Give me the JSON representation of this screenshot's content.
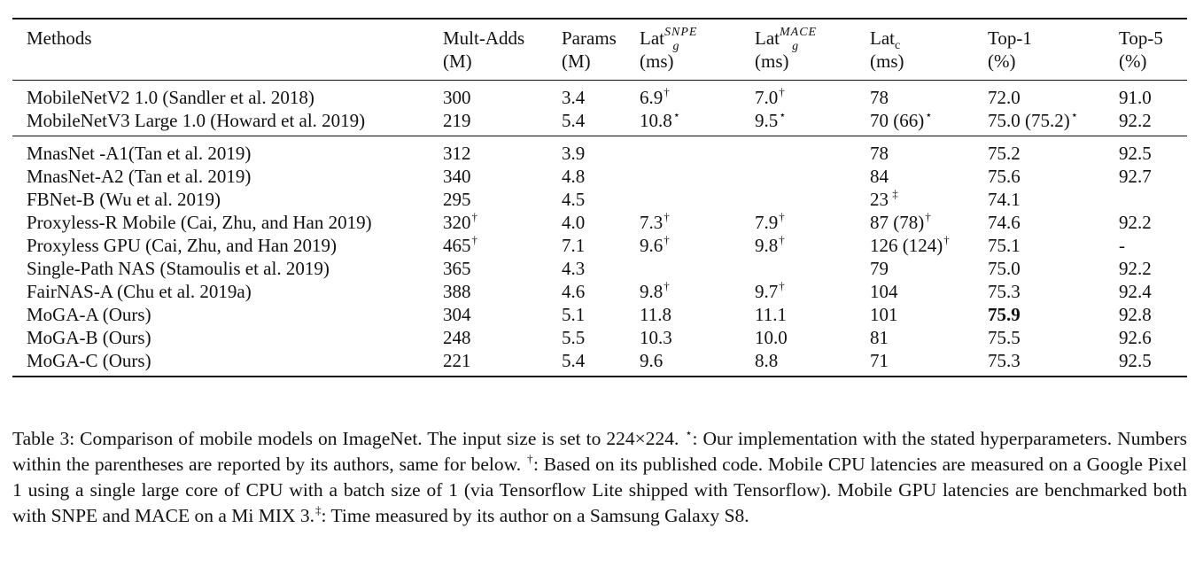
{
  "table": {
    "headers": {
      "methods": "Methods",
      "mult_adds": {
        "line1": "Mult-Adds",
        "line2": "(M)"
      },
      "params": {
        "line1": "Params",
        "line2": "(M)"
      },
      "lat_snpe": {
        "base": "Lat",
        "sub": "g",
        "sup": "SNPE",
        "line2": "(ms)"
      },
      "lat_mace": {
        "base": "Lat",
        "sub": "g",
        "sup": "MACE",
        "line2": "(ms)"
      },
      "lat_c": {
        "base": "Lat",
        "sub": "c",
        "line2": "(ms)"
      },
      "top1": {
        "line1": "Top-1",
        "line2": "(%)"
      },
      "top5": {
        "line1": "Top-5",
        "line2": "(%)"
      }
    },
    "groups": [
      {
        "rows": [
          {
            "method": "MobileNetV2 1.0 (Sandler et al. 2018)",
            "mult_adds": "300",
            "mult_adds_mark": "",
            "params": "3.4",
            "lat_snpe": "6.9",
            "lat_snpe_mark": "†",
            "lat_mace": "7.0",
            "lat_mace_mark": "†",
            "lat_c": "78",
            "lat_c_mark": "",
            "top1": "72.0",
            "top1_mark": "",
            "top1_bold": false,
            "top5": "91.0"
          },
          {
            "method": "MobileNetV3 Large 1.0 (Howard et al. 2019)",
            "mult_adds": "219",
            "mult_adds_mark": "",
            "params": "5.4",
            "lat_snpe": "10.8",
            "lat_snpe_mark": "⋆",
            "lat_mace": "9.5",
            "lat_mace_mark": "⋆",
            "lat_c": "70 (66)",
            "lat_c_mark": "⋆",
            "top1": "75.0 (75.2)",
            "top1_mark": "⋆",
            "top1_bold": false,
            "top5": "92.2"
          }
        ]
      },
      {
        "rows": [
          {
            "method": "MnasNet -A1(Tan et al. 2019)",
            "mult_adds": "312",
            "mult_adds_mark": "",
            "params": "3.9",
            "lat_snpe": "",
            "lat_snpe_mark": "",
            "lat_mace": "",
            "lat_mace_mark": "",
            "lat_c": "78",
            "lat_c_mark": "",
            "top1": "75.2",
            "top1_mark": "",
            "top1_bold": false,
            "top5": "92.5"
          },
          {
            "method": "MnasNet-A2 (Tan et al. 2019)",
            "mult_adds": "340",
            "mult_adds_mark": "",
            "params": "4.8",
            "lat_snpe": "",
            "lat_snpe_mark": "",
            "lat_mace": "",
            "lat_mace_mark": "",
            "lat_c": "84",
            "lat_c_mark": "",
            "top1": "75.6",
            "top1_mark": "",
            "top1_bold": false,
            "top5": "92.7"
          },
          {
            "method": "FBNet-B (Wu et al. 2019)",
            "mult_adds": "295",
            "mult_adds_mark": "",
            "params": "4.5",
            "lat_snpe": "",
            "lat_snpe_mark": "",
            "lat_mace": "",
            "lat_mace_mark": "",
            "lat_c": "23",
            "lat_c_mark": " ‡",
            "top1": "74.1",
            "top1_mark": "",
            "top1_bold": false,
            "top5": ""
          },
          {
            "method": "Proxyless-R Mobile (Cai, Zhu, and Han 2019)",
            "mult_adds": "320",
            "mult_adds_mark": "†",
            "params": "4.0",
            "lat_snpe": "7.3",
            "lat_snpe_mark": "†",
            "lat_mace": "7.9",
            "lat_mace_mark": "†",
            "lat_c": "87 (78)",
            "lat_c_mark": "†",
            "top1": "74.6",
            "top1_mark": "",
            "top1_bold": false,
            "top5": "92.2"
          },
          {
            "method": "Proxyless GPU (Cai, Zhu, and Han 2019)",
            "mult_adds": "465",
            "mult_adds_mark": "†",
            "params": "7.1",
            "lat_snpe": "9.6",
            "lat_snpe_mark": "†",
            "lat_mace": "9.8",
            "lat_mace_mark": "†",
            "lat_c": "126 (124)",
            "lat_c_mark": "†",
            "top1": "75.1",
            "top1_mark": "",
            "top1_bold": false,
            "top5": "-"
          },
          {
            "method": "Single-Path NAS (Stamoulis et al. 2019)",
            "mult_adds": "365",
            "mult_adds_mark": "",
            "params": "4.3",
            "lat_snpe": "",
            "lat_snpe_mark": "",
            "lat_mace": "",
            "lat_mace_mark": "",
            "lat_c": "79",
            "lat_c_mark": "",
            "top1": "75.0",
            "top1_mark": "",
            "top1_bold": false,
            "top5": "92.2"
          },
          {
            "method": "FairNAS-A (Chu et al. 2019a)",
            "mult_adds": "388",
            "mult_adds_mark": "",
            "params": "4.6",
            "lat_snpe": "9.8",
            "lat_snpe_mark": "†",
            "lat_mace": "9.7",
            "lat_mace_mark": "†",
            "lat_c": "104",
            "lat_c_mark": "",
            "top1": "75.3",
            "top1_mark": "",
            "top1_bold": false,
            "top5": "92.4"
          },
          {
            "method": "MoGA-A (Ours)",
            "mult_adds": "304",
            "mult_adds_mark": "",
            "params": "5.1",
            "lat_snpe": "11.8",
            "lat_snpe_mark": "",
            "lat_mace": "11.1",
            "lat_mace_mark": "",
            "lat_c": "101",
            "lat_c_mark": "",
            "top1": "75.9",
            "top1_mark": "",
            "top1_bold": true,
            "top5": "92.8"
          },
          {
            "method": "MoGA-B (Ours)",
            "mult_adds": "248",
            "mult_adds_mark": "",
            "params": "5.5",
            "lat_snpe": "10.3",
            "lat_snpe_mark": "",
            "lat_mace": "10.0",
            "lat_mace_mark": "",
            "lat_c": "81",
            "lat_c_mark": "",
            "top1": "75.5",
            "top1_mark": "",
            "top1_bold": false,
            "top5": "92.6"
          },
          {
            "method": "MoGA-C (Ours)",
            "mult_adds": "221",
            "mult_adds_mark": "",
            "params": "5.4",
            "lat_snpe": "9.6",
            "lat_snpe_mark": "",
            "lat_mace": "8.8",
            "lat_mace_mark": "",
            "lat_c": "71",
            "lat_c_mark": "",
            "top1": "75.3",
            "top1_mark": "",
            "top1_bold": false,
            "top5": "92.5"
          }
        ]
      }
    ]
  },
  "caption": {
    "part1": "Table 3: Comparison of mobile models on ImageNet. The input size is set to 224×224. ",
    "star": "⋆",
    "part2": ": Our implementation with the stated hyperparameters. Numbers within the parentheses are reported by its authors, same for below. ",
    "dagger": "†",
    "part3": ": Based on its published code. Mobile CPU latencies are measured on a Google Pixel 1 using a single large core of CPU with a batch size of 1 (via Tensorflow Lite shipped with Tensorflow). Mobile GPU latencies are benchmarked both with SNPE and MACE on a Mi MIX 3.",
    "ddagger": "‡",
    "part4": ": Time measured by its author on a Samsung Galaxy S8."
  }
}
